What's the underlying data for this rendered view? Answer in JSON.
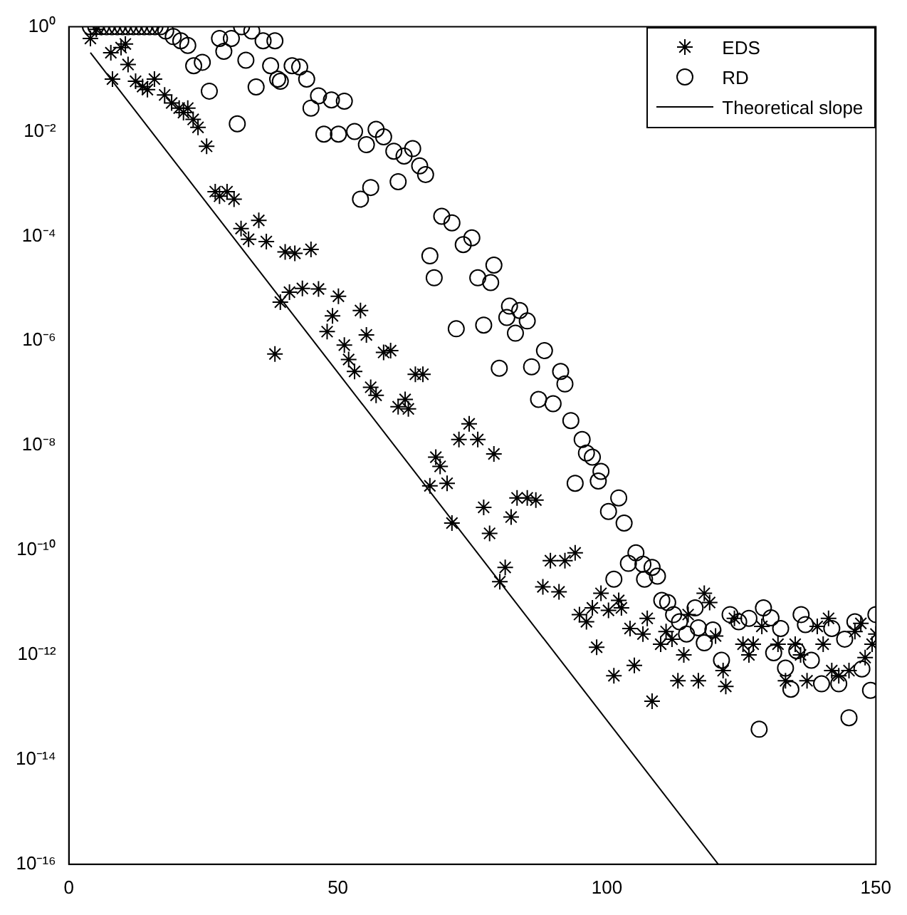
{
  "chart_data": {
    "type": "scatter",
    "xlim": [
      0,
      150
    ],
    "xticks": [
      0,
      50,
      100,
      150
    ],
    "ylim": [
      1e-16,
      1
    ],
    "log": "y",
    "grid": false,
    "legend": "top right",
    "yticks": [
      {
        "value": 1,
        "label": "10⁰"
      },
      {
        "value": 0.01,
        "label": "10⁻²"
      },
      {
        "value": 0.0001,
        "label": "10⁻⁴"
      },
      {
        "value": 1e-06,
        "label": "10⁻⁶"
      },
      {
        "value": 1e-08,
        "label": "10⁻⁸"
      },
      {
        "value": 1e-10,
        "label": "10⁻¹⁰"
      },
      {
        "value": 1e-12,
        "label": "10⁻¹²"
      },
      {
        "value": 1e-14,
        "label": "10⁻¹⁴"
      },
      {
        "value": 1e-16,
        "label": "10⁻¹⁶"
      }
    ],
    "series": [
      {
        "name": "EDS",
        "type": "scatter",
        "marker": "cross",
        "color": "#000000",
        "x": [
          4,
          5.1,
          7.8,
          8.1,
          9.7,
          10.5,
          11,
          12.4,
          13.7,
          14.6,
          15.9,
          17.8,
          19.1,
          20.5,
          21.3,
          22.1,
          23.1,
          24,
          25.6,
          27.2,
          28,
          29.4,
          30.7,
          32,
          33.4,
          35.3,
          36.7,
          38.3,
          39.3,
          40.2,
          41,
          42,
          43.4,
          45,
          46.4,
          48,
          49,
          50.1,
          51.2,
          52,
          53.1,
          54.2,
          55.3,
          56.1,
          57.1,
          58.5,
          59.8,
          61.2,
          62.5,
          63.1,
          64.4,
          65.8,
          67.1,
          68.2,
          69,
          70.3,
          71.2,
          72.5,
          74.4,
          76,
          77.1,
          78.2,
          79,
          80.1,
          81.1,
          82.2,
          83.3,
          85.2,
          86.8,
          88.1,
          89.5,
          91.1,
          92.2,
          94.1,
          94.9,
          96.2,
          97.3,
          98.1,
          98.9,
          100.3,
          101.3,
          102.2,
          102.7,
          104.3,
          105.1,
          106.7,
          107.5,
          108.4,
          110,
          111,
          112.1,
          113.2,
          114.3,
          115.1,
          117,
          118.1,
          119.1,
          120.2,
          121.6,
          122.1,
          123.7,
          125.3,
          126.4,
          127.2,
          128.8,
          131.8,
          133.2,
          135,
          136,
          137.2,
          139.1,
          140.2,
          141.2,
          141.8,
          143.1,
          145,
          146.1,
          147.2,
          148,
          149.3,
          150
        ],
        "values": [
          0.6,
          0.89,
          0.32,
          0.1,
          0.4,
          0.47,
          0.19,
          0.091,
          0.072,
          0.063,
          0.1,
          0.05,
          0.035,
          0.028,
          0.023,
          0.028,
          0.017,
          0.012,
          0.0052,
          0.00071,
          0.00058,
          0.00071,
          0.00051,
          0.00014,
          8.7e-05,
          0.0002,
          7.9e-05,
          5.6e-07,
          5.5e-06,
          5e-05,
          8.5e-06,
          4.7e-05,
          1e-05,
          5.6e-05,
          9.8e-06,
          1.5e-06,
          3e-06,
          7.1e-06,
          8.3e-07,
          4.4e-07,
          2.6e-07,
          3.8e-06,
          1.3e-06,
          1.3e-07,
          9.1e-08,
          6e-07,
          6.5e-07,
          5.5e-08,
          7.6e-08,
          5e-08,
          2.3e-07,
          2.3e-07,
          1.7e-09,
          6e-09,
          4e-09,
          1.9e-09,
          3.3e-10,
          1.3e-08,
          2.6e-08,
          1.3e-08,
          6.6e-10,
          2.1e-10,
          6.9e-09,
          2.5e-11,
          4.7e-11,
          4.3e-10,
          1e-09,
          1e-09,
          9.1e-10,
          2e-11,
          6.3e-11,
          1.6e-11,
          6.3e-11,
          8.9e-11,
          5.9e-12,
          4.3e-12,
          7.9e-12,
          1.4e-12,
          1.5e-11,
          7.1e-12,
          4e-13,
          1.1e-11,
          7.9e-12,
          3.2e-12,
          6.3e-13,
          2.5e-12,
          5e-12,
          1.3e-13,
          1.6e-12,
          2.8e-12,
          2e-12,
          3.2e-13,
          1e-12,
          5.9e-12,
          3.2e-13,
          1.5e-11,
          1e-11,
          2.3e-12,
          5e-13,
          2.5e-13,
          5e-12,
          1.6e-12,
          1e-12,
          1.6e-12,
          3.5e-12,
          1.6e-12,
          3.2e-13,
          1.6e-12,
          1e-12,
          3.2e-13,
          3.5e-12,
          1.6e-12,
          5e-12,
          5e-13,
          4e-13,
          5e-13,
          2.8e-12,
          4e-12,
          8.9e-13,
          1.6e-12,
          2.5e-12
        ]
      },
      {
        "name": "RD",
        "type": "scatter",
        "marker": "circle",
        "color": "#000000",
        "x": [
          4,
          5,
          6,
          7,
          8,
          9,
          10,
          11,
          12,
          13,
          14,
          15,
          16,
          17,
          18,
          19.4,
          20.8,
          22.1,
          23.2,
          24.8,
          26.1,
          28,
          28.8,
          30.2,
          31.3,
          32.1,
          32.9,
          34,
          34.8,
          36.1,
          37.5,
          38.3,
          38.8,
          39.3,
          41.5,
          42.9,
          44.2,
          45,
          46.4,
          47.4,
          48.8,
          50.1,
          51.2,
          53.1,
          54.2,
          55.3,
          56.1,
          57.1,
          58.5,
          60.4,
          61.2,
          62.3,
          63.9,
          65.2,
          66.3,
          67.1,
          67.9,
          69.3,
          71.2,
          72,
          73.3,
          74.9,
          76,
          77.1,
          78.4,
          79,
          80,
          81.4,
          81.9,
          83,
          83.8,
          85.2,
          86,
          87.3,
          88.4,
          90,
          91.4,
          92.2,
          93.3,
          94.1,
          95.4,
          96.2,
          97.3,
          98.4,
          98.9,
          100.3,
          101.3,
          102.2,
          103.2,
          104,
          105.4,
          106.7,
          107,
          108.4,
          109.4,
          110.2,
          111.3,
          112.4,
          113.5,
          114.8,
          116.4,
          117,
          118.1,
          119.7,
          121.3,
          122.9,
          124.5,
          126.4,
          128.3,
          129.1,
          130.5,
          131,
          132.3,
          133.2,
          134.2,
          135.3,
          136.1,
          136.9,
          138,
          139.9,
          141.8,
          143.1,
          144.2,
          145,
          146.1,
          147.4,
          149,
          150
        ],
        "values": [
          1,
          1,
          1,
          1,
          1,
          1,
          1,
          1,
          1,
          1,
          1,
          1,
          1,
          1,
          0.83,
          0.65,
          0.54,
          0.44,
          0.18,
          0.21,
          0.059,
          0.6,
          0.34,
          0.6,
          0.014,
          1,
          0.23,
          0.83,
          0.071,
          0.54,
          0.18,
          0.54,
          0.1,
          0.091,
          0.18,
          0.17,
          0.1,
          0.028,
          0.048,
          0.0089,
          0.04,
          0.0089,
          0.038,
          0.01,
          0.00051,
          0.0056,
          0.00085,
          0.011,
          0.0079,
          0.0042,
          0.0011,
          0.0034,
          0.0047,
          0.0022,
          0.0015,
          4.2e-05,
          1.6e-05,
          0.00024,
          0.00018,
          1.7e-06,
          6.9e-05,
          9.3e-05,
          1.6e-05,
          2e-06,
          1.3e-05,
          2.8e-05,
          3e-07,
          2.8e-06,
          4.6e-06,
          1.4e-06,
          3.8e-06,
          2.4e-06,
          3.2e-07,
          7.6e-08,
          6.5e-07,
          6.3e-08,
          2.6e-07,
          1.5e-07,
          3e-08,
          1.9e-09,
          1.3e-08,
          7.2e-09,
          6e-09,
          2.1e-09,
          3.2e-09,
          5.5e-10,
          2.8e-11,
          1e-09,
          3.3e-10,
          5.6e-11,
          8.9e-11,
          5.4e-11,
          2.8e-11,
          4.7e-11,
          3.2e-11,
          1.1e-11,
          1e-11,
          5.9e-12,
          4.3e-12,
          2.5e-12,
          7.9e-12,
          3.3e-12,
          1.7e-12,
          3e-12,
          7.9e-13,
          5.9e-12,
          4.3e-12,
          5e-12,
          3.8e-14,
          7.9e-12,
          5.1e-12,
          1.1e-12,
          3.2e-12,
          5.6e-13,
          2.2e-13,
          1.2e-12,
          5.9e-12,
          3.8e-12,
          7.9e-13,
          2.8e-13,
          3.2e-12,
          2.8e-13,
          2e-12,
          6.3e-14,
          4.3e-12,
          5.4e-13,
          2.1e-13,
          5.9e-12
        ]
      },
      {
        "name": "Theoretical slope",
        "type": "line",
        "marker": "none",
        "line_style": "solid",
        "color": "#000000",
        "x": [
          4,
          120.7
        ],
        "values": [
          0.32,
          1e-16
        ]
      }
    ]
  }
}
